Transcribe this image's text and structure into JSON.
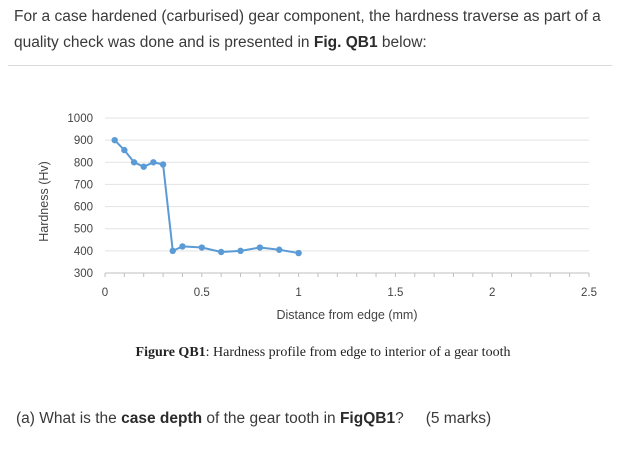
{
  "intro": {
    "text_before": "For a case hardened (carburised) gear component, the hardness traverse as part of a quality check was done and is presented in ",
    "figure_ref": "Fig. QB1",
    "text_after": " below:"
  },
  "chart_data": {
    "type": "line",
    "title": "",
    "xlabel": "Distance from edge (mm)",
    "ylabel": "Hardness (Hv)",
    "xlim": [
      0,
      2.5
    ],
    "ylim": [
      300,
      1000
    ],
    "xticks": [
      0,
      0.5,
      1,
      1.5,
      2,
      2.5
    ],
    "xtick_labels": [
      "0",
      "0.5",
      "1",
      "1.5",
      "2",
      "2.5"
    ],
    "yticks": [
      300,
      400,
      500,
      600,
      700,
      800,
      900,
      1000
    ],
    "ytick_labels": [
      "300",
      "400",
      "500",
      "600",
      "700",
      "800",
      "900",
      "1000"
    ],
    "grid": "horizontal",
    "legend": "none",
    "color": "#5b9bd5",
    "series": [
      {
        "x": [
          0.05,
          0.1,
          0.15,
          0.2,
          0.25,
          0.3,
          0.35,
          0.4,
          0.5,
          0.6,
          0.7,
          0.8,
          0.9,
          1.0
        ],
        "y": [
          900,
          855,
          800,
          780,
          800,
          790,
          400,
          420,
          415,
          395,
          400,
          415,
          405,
          390
        ]
      }
    ]
  },
  "caption": {
    "label": "Figure QB1",
    "text": ": Hardness profile from edge to interior of a gear tooth"
  },
  "question": {
    "prefix": "(a) What is the ",
    "term": "case depth",
    "middle": " of the gear tooth in ",
    "figure_ref": "FigQB1",
    "suffix": "?",
    "marks": "(5 marks)"
  }
}
